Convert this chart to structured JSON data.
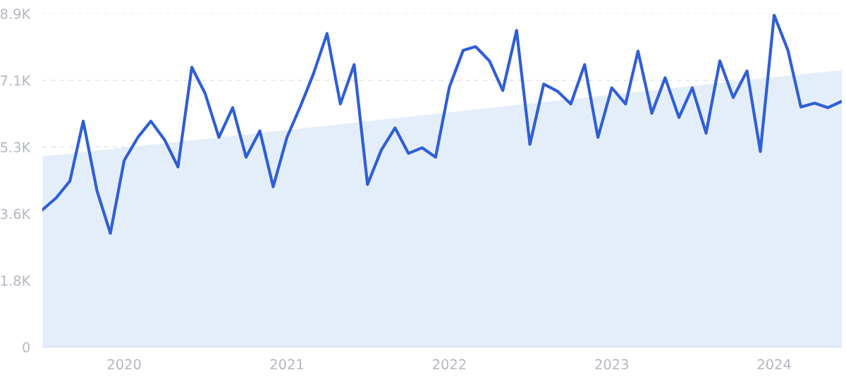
{
  "chart_data": {
    "type": "line",
    "x": [
      "2019-07",
      "2019-08",
      "2019-09",
      "2019-10",
      "2019-11",
      "2019-12",
      "2020-01",
      "2020-02",
      "2020-03",
      "2020-04",
      "2020-05",
      "2020-06",
      "2020-07",
      "2020-08",
      "2020-09",
      "2020-10",
      "2020-11",
      "2020-12",
      "2021-01",
      "2021-02",
      "2021-03",
      "2021-04",
      "2021-05",
      "2021-06",
      "2021-07",
      "2021-08",
      "2021-09",
      "2021-10",
      "2021-11",
      "2021-12",
      "2022-01",
      "2022-02",
      "2022-03",
      "2022-04",
      "2022-05",
      "2022-06",
      "2022-07",
      "2022-08",
      "2022-09",
      "2022-10",
      "2022-11",
      "2022-12",
      "2023-01",
      "2023-02",
      "2023-03",
      "2023-04",
      "2023-05",
      "2023-06",
      "2023-07",
      "2023-08",
      "2023-09",
      "2023-10",
      "2023-11",
      "2023-12",
      "2024-01",
      "2024-02",
      "2024-03",
      "2024-04",
      "2024-05",
      "2024-06"
    ],
    "series": [
      {
        "type": "area",
        "color": "#e4eefb",
        "x": [
          "2019-07",
          "2024-06"
        ],
        "values": [
          5090,
          7400
        ]
      },
      {
        "color": "#2f5ed6",
        "values": [
          3660,
          3980,
          4430,
          6030,
          4170,
          3040,
          4980,
          5600,
          6030,
          5530,
          4810,
          7470,
          6770,
          5600,
          6390,
          5070,
          5770,
          4280,
          5600,
          6450,
          7280,
          8370,
          6490,
          7540,
          4340,
          5260,
          5850,
          5170,
          5320,
          5070,
          6940,
          7920,
          8020,
          7640,
          6850,
          8450,
          5410,
          7020,
          6830,
          6490,
          7540,
          5600,
          6920,
          6490,
          7900,
          6240,
          7190,
          6130,
          6920,
          5710,
          7640,
          6660,
          7370,
          5220,
          8860,
          7920,
          6410,
          6510,
          6390,
          6560
        ]
      }
    ],
    "xlim": [
      "2019-07",
      "2024-06"
    ],
    "xticks": [
      {
        "value": "2020-01",
        "label": "2020"
      },
      {
        "value": "2021-01",
        "label": "2021"
      },
      {
        "value": "2022-01",
        "label": "2022"
      },
      {
        "value": "2023-01",
        "label": "2023"
      },
      {
        "value": "2024-01",
        "label": "2024"
      }
    ],
    "ylim": [
      0,
      8900
    ],
    "yticks": [
      0,
      {
        "value": 1780,
        "label": "1.8K"
      },
      {
        "value": 3560,
        "label": "3.6K"
      },
      {
        "value": 5340,
        "label": "5.3K"
      },
      {
        "value": 7120,
        "label": "7.1K"
      },
      {
        "value": 8900,
        "label": "8.9K"
      }
    ],
    "grid": "y",
    "line_style": "solid",
    "marker": "none"
  }
}
